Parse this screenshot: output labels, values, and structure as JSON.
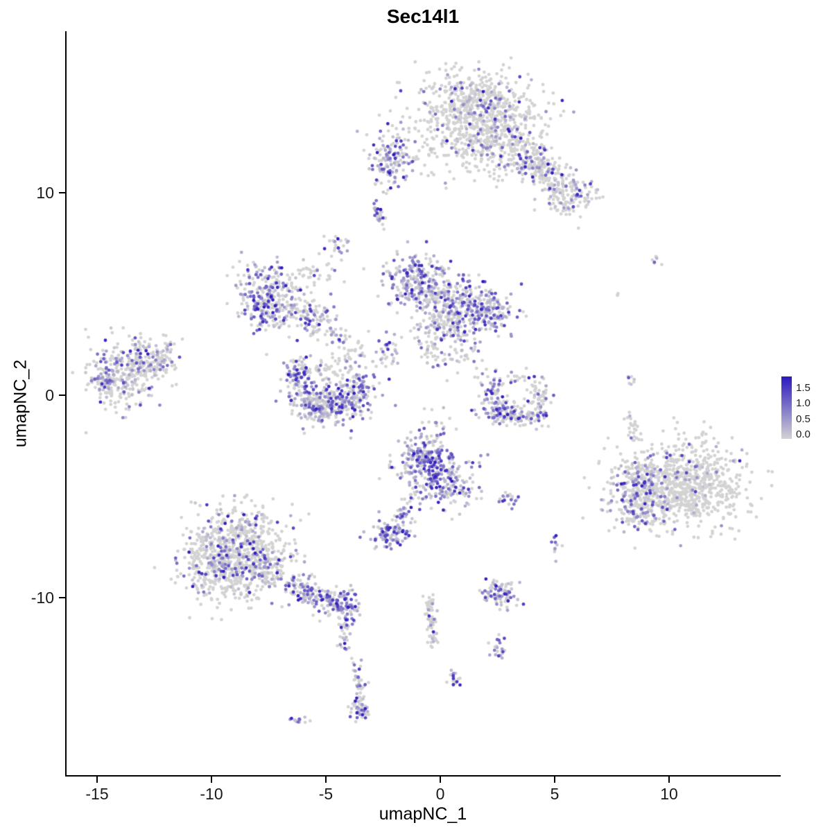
{
  "title": "Sec14l1",
  "axes": {
    "x": {
      "label": "umapNC_1",
      "ticks": [
        "-15",
        "-10",
        "-5",
        "0",
        "5",
        "10"
      ]
    },
    "y": {
      "label": "umapNC_2",
      "ticks": [
        "10",
        "0",
        "-10"
      ]
    }
  },
  "legend": {
    "labels": [
      "1.5",
      "1.0",
      "0.5",
      "0.0"
    ],
    "low_color": "#d3d3d3",
    "high_color": "#2b18be",
    "scale_max": 1.75
  },
  "chart_data": {
    "type": "scatter",
    "title": "Sec14l1",
    "xlabel": "umapNC_1",
    "ylabel": "umapNC_2",
    "xlim": [
      -16.4,
      14.8
    ],
    "ylim": [
      -18.8,
      18.0
    ],
    "x_ticks": [
      -15,
      -10,
      -5,
      0,
      5,
      10
    ],
    "y_ticks": [
      10,
      0,
      -10
    ],
    "grid": false,
    "legend_position": "right",
    "color_scale": {
      "low": "#d3d3d3",
      "high": "#2b18be",
      "min": 0.0,
      "max": 1.75,
      "legend_ticks": [
        1.5,
        1.0,
        0.5,
        0.0
      ]
    },
    "point_radius_px": 2.4,
    "blob_format": [
      "center_x",
      "center_y",
      "sd_x",
      "sd_y",
      "n_points",
      "zero_expression_fraction"
    ],
    "blobs": [
      [
        1.4,
        14.3,
        1.25,
        0.95,
        550,
        0.82
      ],
      [
        2.8,
        12.8,
        1.0,
        0.9,
        320,
        0.8
      ],
      [
        5.8,
        9.7,
        0.6,
        0.5,
        110,
        0.72
      ],
      [
        0.2,
        12.3,
        1.3,
        0.8,
        90,
        0.85
      ],
      [
        -2.1,
        11.7,
        0.55,
        0.75,
        140,
        0.45
      ],
      [
        -4.5,
        7.4,
        0.28,
        0.25,
        22,
        0.5
      ],
      [
        4.4,
        11.3,
        0.5,
        0.4,
        60,
        0.75
      ],
      [
        -7.7,
        5.3,
        0.6,
        0.65,
        150,
        0.45
      ],
      [
        -6.7,
        4.5,
        0.7,
        0.6,
        130,
        0.6
      ],
      [
        -5.4,
        3.7,
        0.5,
        0.45,
        80,
        0.6
      ],
      [
        -5.6,
        6.1,
        0.7,
        0.4,
        40,
        0.8
      ],
      [
        -7.9,
        4.0,
        0.4,
        0.4,
        60,
        0.5
      ],
      [
        -1.2,
        5.7,
        0.6,
        0.65,
        190,
        0.35
      ],
      [
        0.1,
        4.7,
        0.85,
        0.8,
        240,
        0.6
      ],
      [
        1.9,
        4.2,
        0.7,
        0.6,
        210,
        0.3
      ],
      [
        0.4,
        3.4,
        0.6,
        0.4,
        90,
        0.5
      ],
      [
        -2.3,
        2.2,
        0.35,
        0.5,
        35,
        0.45
      ],
      [
        1.0,
        2.0,
        0.5,
        0.55,
        30,
        0.7
      ],
      [
        -13.8,
        1.0,
        0.85,
        0.8,
        260,
        0.72
      ],
      [
        -12.6,
        1.7,
        0.6,
        0.5,
        110,
        0.75
      ],
      [
        -14.6,
        0.7,
        0.35,
        0.5,
        60,
        0.5
      ],
      [
        -11.9,
        2.5,
        0.15,
        0.15,
        8,
        0.6
      ],
      [
        -6.2,
        0.9,
        0.3,
        0.5,
        80,
        0.4
      ],
      [
        -5.5,
        -0.4,
        0.6,
        0.5,
        170,
        0.5
      ],
      [
        -4.4,
        -0.5,
        0.6,
        0.5,
        150,
        0.45
      ],
      [
        -3.6,
        0.3,
        0.4,
        0.5,
        90,
        0.5
      ],
      [
        -5.0,
        1.3,
        0.8,
        0.35,
        60,
        0.85
      ],
      [
        3.3,
        -0.9,
        0.7,
        0.3,
        140,
        0.35
      ],
      [
        2.3,
        0.1,
        0.3,
        0.5,
        55,
        0.5
      ],
      [
        4.3,
        -0.1,
        0.3,
        0.5,
        55,
        0.7
      ],
      [
        3.1,
        0.9,
        0.5,
        0.3,
        20,
        0.75
      ],
      [
        -0.8,
        -3.2,
        0.6,
        0.6,
        210,
        0.25
      ],
      [
        0.3,
        -4.3,
        0.75,
        0.7,
        190,
        0.42
      ],
      [
        -2.1,
        -6.9,
        0.5,
        0.32,
        100,
        0.3
      ],
      [
        3.0,
        -5.1,
        0.25,
        0.2,
        20,
        0.5
      ],
      [
        -0.4,
        -1.6,
        0.4,
        0.5,
        22,
        0.65
      ],
      [
        10.6,
        -4.4,
        1.35,
        1.05,
        850,
        0.93
      ],
      [
        8.7,
        -4.7,
        0.65,
        0.95,
        260,
        0.55
      ],
      [
        8.3,
        0.8,
        0.12,
        0.3,
        7,
        0.6
      ],
      [
        9.4,
        6.8,
        0.15,
        0.2,
        7,
        0.8
      ],
      [
        7.8,
        5.0,
        0.1,
        0.1,
        3,
        0.7
      ],
      [
        -8.8,
        -6.9,
        0.95,
        0.85,
        330,
        0.8
      ],
      [
        -9.5,
        -8.7,
        0.9,
        0.8,
        330,
        0.75
      ],
      [
        -7.7,
        -8.4,
        0.75,
        0.7,
        200,
        0.68
      ],
      [
        -4.2,
        -10.4,
        0.45,
        0.4,
        90,
        0.3
      ],
      [
        -10.3,
        -7.6,
        0.5,
        0.7,
        80,
        0.8
      ],
      [
        2.6,
        -9.8,
        0.38,
        0.38,
        85,
        0.4
      ],
      [
        2.5,
        -12.5,
        0.18,
        0.3,
        22,
        0.5
      ],
      [
        -3.5,
        -15.6,
        0.25,
        0.28,
        35,
        0.35
      ],
      [
        0.6,
        -14.2,
        0.15,
        0.25,
        18,
        0.5
      ],
      [
        -6.2,
        -16.1,
        0.22,
        0.1,
        12,
        0.4
      ],
      [
        5.1,
        -7.6,
        0.12,
        0.35,
        10,
        0.45
      ]
    ],
    "arm_format": [
      "x1",
      "y1",
      "x2",
      "y2",
      "width",
      "n_points",
      "zero_expression_fraction"
    ],
    "arms": [
      [
        3.5,
        12.0,
        5.6,
        10.0,
        0.45,
        160,
        0.78
      ],
      [
        -2.75,
        9.3,
        -2.55,
        8.6,
        0.12,
        28,
        0.5
      ],
      [
        -4.9,
        3.3,
        -3.3,
        1.9,
        0.3,
        45,
        0.7
      ],
      [
        -0.6,
        3.0,
        -0.2,
        1.6,
        0.25,
        40,
        0.6
      ],
      [
        -1.0,
        -4.9,
        -1.9,
        -6.3,
        0.2,
        35,
        0.6
      ],
      [
        8.2,
        -1.0,
        8.7,
        -2.6,
        0.15,
        25,
        0.8
      ],
      [
        -6.7,
        -9.3,
        -4.4,
        -10.4,
        0.35,
        140,
        0.45
      ],
      [
        -4.1,
        -11.1,
        -4.3,
        -12.7,
        0.15,
        28,
        0.5
      ],
      [
        -0.5,
        -9.9,
        -0.3,
        -12.4,
        0.12,
        60,
        0.72
      ],
      [
        -3.7,
        -13.2,
        -3.45,
        -15.3,
        0.12,
        45,
        0.5
      ]
    ]
  }
}
